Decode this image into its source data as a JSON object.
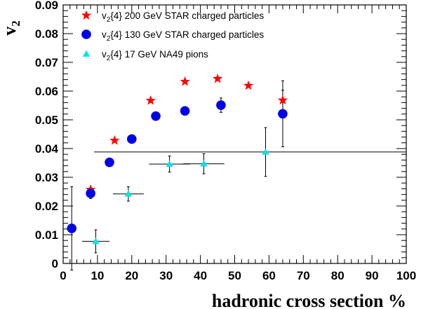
{
  "chart_data": {
    "type": "scatter",
    "xlabel": "hadronic cross section %",
    "ylabel": "v",
    "ylabel_sub": "2",
    "xlim": [
      0,
      100
    ],
    "ylim": [
      0,
      0.09
    ],
    "x_ticks": [
      0,
      10,
      20,
      30,
      40,
      50,
      60,
      70,
      80,
      90,
      100
    ],
    "y_ticks": [
      0,
      0.01,
      0.02,
      0.03,
      0.04,
      0.05,
      0.06,
      0.07,
      0.08,
      0.09
    ],
    "x_tick_labels": [
      "0",
      "10",
      "20",
      "30",
      "40",
      "50",
      "60",
      "70",
      "80",
      "90",
      "100"
    ],
    "y_tick_labels": [
      "0",
      "0.01",
      "0.02",
      "0.03",
      "0.04",
      "0.05",
      "0.06",
      "0.07",
      "0.08",
      "0.09"
    ],
    "legend_position": "top-left",
    "series": [
      {
        "name_pre": "v",
        "name_sub": "2",
        "name_post": "{4} 200 GeV STAR charged particles",
        "marker": "star",
        "color": "#ff0000",
        "points": [
          {
            "x": 8.0,
            "y": 0.0257
          },
          {
            "x": 15.0,
            "y": 0.0428
          },
          {
            "x": 25.5,
            "y": 0.0567
          },
          {
            "x": 35.5,
            "y": 0.0633
          },
          {
            "x": 45.0,
            "y": 0.0643
          },
          {
            "x": 54.0,
            "y": 0.0619
          },
          {
            "x": 64.0,
            "y": 0.0568,
            "yerr": 0.0035
          }
        ]
      },
      {
        "name_pre": "v",
        "name_sub": "2",
        "name_post": "{4} 130 GeV STAR charged particles",
        "marker": "circle",
        "color": "#0000e6",
        "points": [
          {
            "x": 2.5,
            "y": 0.0122,
            "yerr": 0.0145
          },
          {
            "x": 8.0,
            "y": 0.0244,
            "yerr": 0.0018
          },
          {
            "x": 13.5,
            "y": 0.0352
          },
          {
            "x": 20.0,
            "y": 0.0433
          },
          {
            "x": 27.0,
            "y": 0.0513
          },
          {
            "x": 35.5,
            "y": 0.0531
          },
          {
            "x": 46.0,
            "y": 0.0551,
            "yerr": 0.0025
          },
          {
            "x": 64.0,
            "y": 0.0521,
            "yerr": 0.0115
          }
        ]
      },
      {
        "name_pre": "v",
        "name_sub": "2",
        "name_post": "{4} 17 GeV NA49 pions",
        "marker": "triangle",
        "color": "#00e5e5",
        "points": [
          {
            "x": 9.5,
            "y": 0.0077,
            "xerr": 4.0,
            "yerr": 0.004
          },
          {
            "x": 19.0,
            "y": 0.0242,
            "xerr": 4.5,
            "yerr": 0.0025
          },
          {
            "x": 31.0,
            "y": 0.0346,
            "xerr": 6.0,
            "yerr": 0.0028
          },
          {
            "x": 41.0,
            "y": 0.0347,
            "xerr": 6.0,
            "yerr": 0.0035
          },
          {
            "x": 59.0,
            "y": 0.0388,
            "xerr": 50.0,
            "yerr": 0.0085
          }
        ]
      }
    ]
  }
}
